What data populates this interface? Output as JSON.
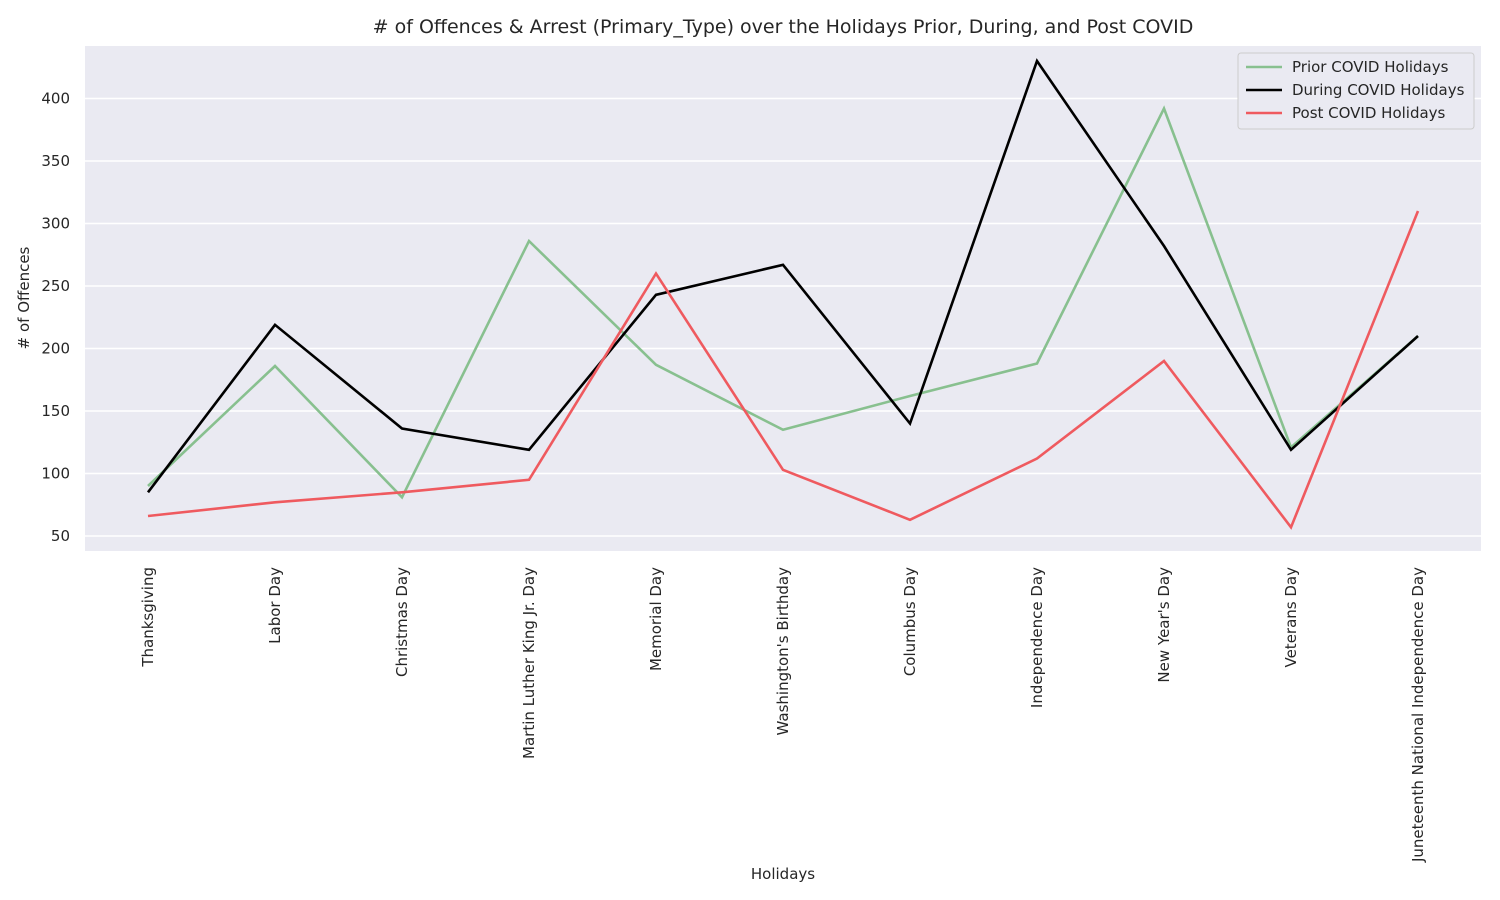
{
  "chart_data": {
    "type": "line",
    "title": "# of Offences & Arrest (Primary_Type) over the Holidays Prior, During, and Post COVID",
    "xlabel": "Holidays",
    "ylabel": "# of Offences",
    "categories": [
      "Thanksgiving",
      "Labor Day",
      "Christmas Day",
      "Martin Luther King Jr. Day",
      "Memorial Day",
      "Washington's Birthday",
      "Columbus Day",
      "Independence Day",
      "New Year's Day",
      "Veterans Day",
      "Juneteenth National Independence Day"
    ],
    "yticks": [
      50,
      100,
      150,
      200,
      250,
      300,
      350,
      400
    ],
    "ylim": [
      38,
      442
    ],
    "grid": true,
    "legend_position": "top-right",
    "background_color": "#eaeaf2",
    "series": [
      {
        "name": "Prior COVID Holidays",
        "color": "#88c08f",
        "values": [
          90,
          186,
          81,
          286,
          187,
          135,
          162,
          188,
          392,
          121,
          210
        ]
      },
      {
        "name": "During COVID Holidays",
        "color": "#000000",
        "values": [
          85,
          219,
          136,
          119,
          243,
          267,
          140,
          430,
          282,
          119,
          210
        ]
      },
      {
        "name": "Post COVID Holidays",
        "color": "#ef5a5f",
        "values": [
          66,
          77,
          85,
          95,
          260,
          103,
          63,
          112,
          190,
          57,
          310
        ]
      }
    ]
  }
}
